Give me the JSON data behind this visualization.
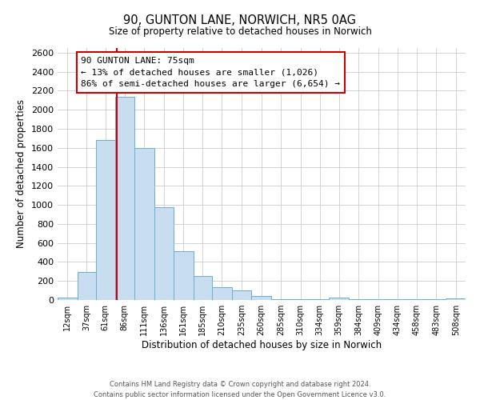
{
  "title": "90, GUNTON LANE, NORWICH, NR5 0AG",
  "subtitle": "Size of property relative to detached houses in Norwich",
  "xlabel": "Distribution of detached houses by size in Norwich",
  "ylabel": "Number of detached properties",
  "bar_color": "#c9ddf0",
  "bar_edge_color": "#6aaed6",
  "bin_edges": [
    0,
    25,
    49,
    73,
    98,
    123,
    148,
    173,
    197,
    222,
    247,
    272,
    297,
    322,
    346,
    371,
    396,
    421,
    445,
    470,
    495,
    520
  ],
  "bin_labels": [
    "12sqm",
    "37sqm",
    "61sqm",
    "86sqm",
    "111sqm",
    "136sqm",
    "161sqm",
    "185sqm",
    "210sqm",
    "235sqm",
    "260sqm",
    "285sqm",
    "310sqm",
    "334sqm",
    "359sqm",
    "384sqm",
    "409sqm",
    "434sqm",
    "458sqm",
    "483sqm",
    "508sqm"
  ],
  "counts": [
    22,
    295,
    1680,
    2140,
    1600,
    975,
    510,
    255,
    135,
    100,
    38,
    5,
    5,
    5,
    22,
    5,
    5,
    5,
    5,
    5,
    18
  ],
  "property_size": 75,
  "vline_color": "#cc0000",
  "ylim": [
    0,
    2650
  ],
  "yticks": [
    0,
    200,
    400,
    600,
    800,
    1000,
    1200,
    1400,
    1600,
    1800,
    2000,
    2200,
    2400,
    2600
  ],
  "annotation_title": "90 GUNTON LANE: 75sqm",
  "annotation_line1": "← 13% of detached houses are smaller (1,026)",
  "annotation_line2": "86% of semi-detached houses are larger (6,654) →",
  "annotation_box_color": "#ffffff",
  "annotation_box_edge_color": "#cc0000",
  "footnote_line1": "Contains HM Land Registry data © Crown copyright and database right 2024.",
  "footnote_line2": "Contains public sector information licensed under the Open Government Licence v3.0.",
  "background_color": "#ffffff",
  "grid_color": "#cccccc"
}
